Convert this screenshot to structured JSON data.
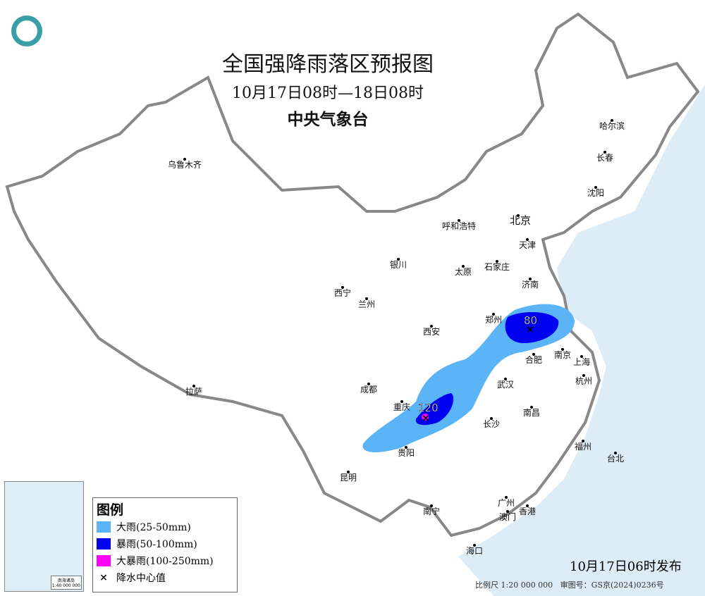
{
  "title": "全国强降雨落区预报图",
  "period": "10月17日08时—18日08时",
  "issuer": "中央气象台",
  "legend": {
    "title": "图例",
    "items": [
      {
        "label": "大雨(25-50mm)",
        "color": "#5ab4f5"
      },
      {
        "label": "暴雨(50-100mm)",
        "color": "#0000f0"
      },
      {
        "label": "大暴雨(100-250mm)",
        "color": "#ff00ff"
      },
      {
        "label": "降水中心值",
        "symbol": "×"
      }
    ]
  },
  "rain_centers": [
    {
      "value": "80"
    },
    {
      "value": "120"
    }
  ],
  "cities": [
    "乌鲁木齐",
    "哈尔滨",
    "长春",
    "沈阳",
    "呼和浩特",
    "北京",
    "天津",
    "银川",
    "太原",
    "石家庄",
    "济南",
    "西宁",
    "兰州",
    "郑州",
    "西安",
    "合肥",
    "南京",
    "上海",
    "拉萨",
    "成都",
    "重庆",
    "武汉",
    "杭州",
    "南昌",
    "长沙",
    "贵阳",
    "福州",
    "台北",
    "昆明",
    "南宁",
    "广州",
    "香港",
    "澳门",
    "海口"
  ],
  "inset": {
    "label": "南海诸岛",
    "scale": "1:40 000 000"
  },
  "published": "10月17日06时发布",
  "scale_text": "比例尺 1:20 000 000",
  "map_number": "审图号：GS京(2024)0236号",
  "colors": {
    "sea": "#dcedf7",
    "capital": "#c00000"
  }
}
